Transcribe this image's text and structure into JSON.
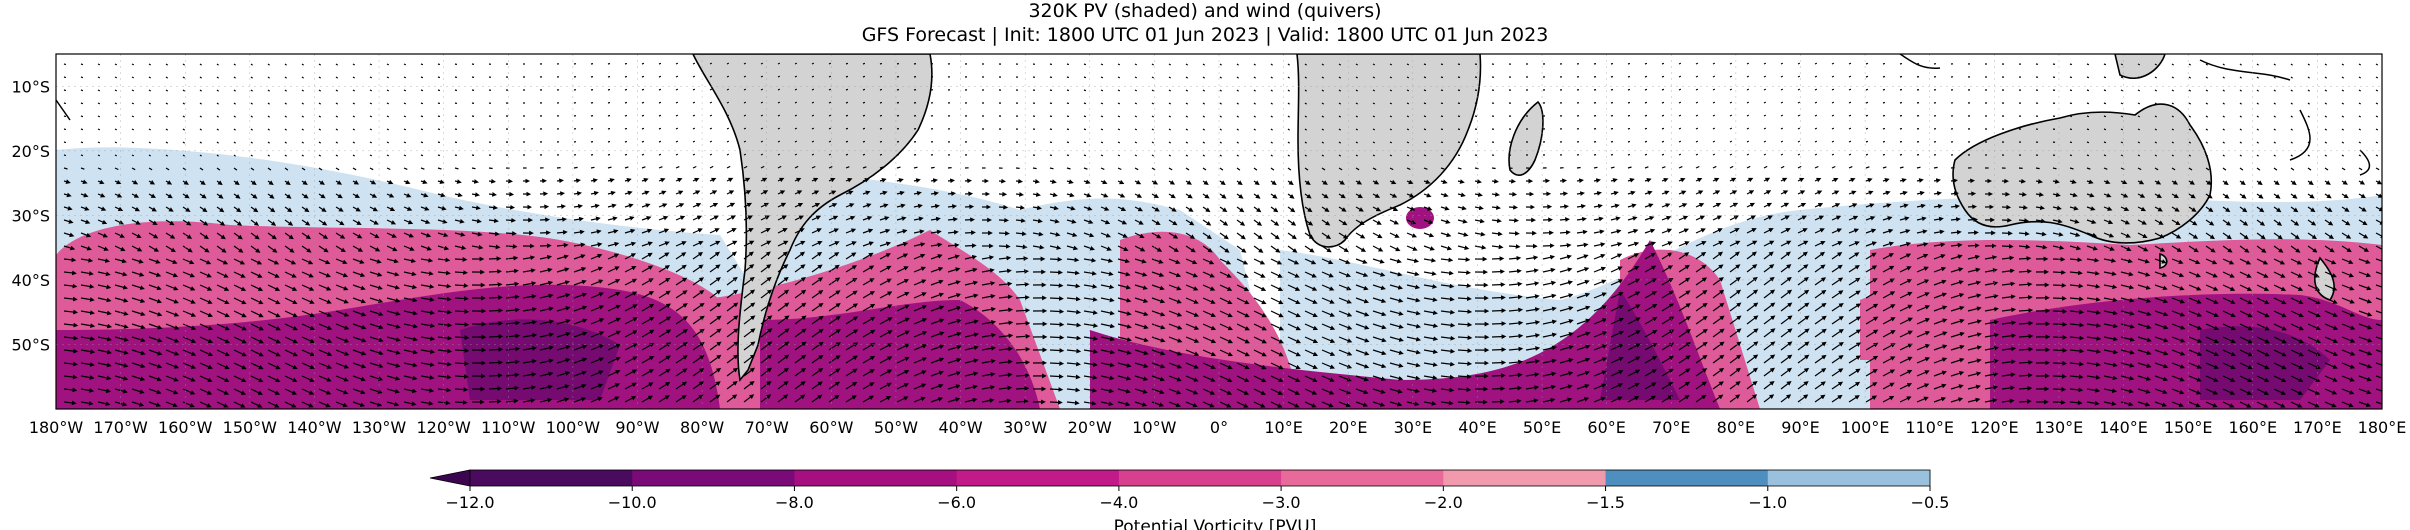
{
  "title": {
    "line1": "320K PV (shaded) and wind (quivers)",
    "line2": "GFS Forecast | Init: 1800 UTC 01 Jun 2023 | Valid: 1800 UTC 01 Jun 2023"
  },
  "map": {
    "lat_labels": [
      "10°S",
      "20°S",
      "30°S",
      "40°S",
      "50°S"
    ],
    "lon_labels": [
      "180°W",
      "170°W",
      "160°W",
      "150°W",
      "140°W",
      "130°W",
      "120°W",
      "110°W",
      "100°W",
      "90°W",
      "80°W",
      "70°W",
      "60°W",
      "50°W",
      "40°W",
      "30°W",
      "20°W",
      "10°W",
      "0°",
      "10°E",
      "20°E",
      "30°E",
      "40°E",
      "50°E",
      "60°E",
      "70°E",
      "80°E",
      "90°E",
      "100°E",
      "110°E",
      "120°E",
      "130°E",
      "140°E",
      "150°E",
      "160°E",
      "170°E",
      "180°E"
    ],
    "extent": {
      "lon": [
        -180,
        180
      ],
      "lat": [
        -5,
        -60
      ]
    },
    "land_color": "#d3d3d3",
    "wind_arrow_color": "#000000"
  },
  "colorbar": {
    "label": "Potential Vorticity [PVU]",
    "tick_labels": [
      "−12.0",
      "−10.0",
      "−8.0",
      "−6.0",
      "−4.0",
      "−3.0",
      "−2.0",
      "−1.5",
      "−1.0",
      "−0.5"
    ],
    "levels": [
      -12.0,
      -10.0,
      -8.0,
      -6.0,
      -4.0,
      -3.0,
      -2.0,
      -1.5,
      -1.0,
      -0.5
    ],
    "colors": [
      "#4a0a5e",
      "#7a0a78",
      "#a60f80",
      "#c21a88",
      "#d8408f",
      "#e86a9a",
      "#f19aad",
      "#4f8fc0",
      "#99c0dd",
      "#d3e5f3"
    ],
    "extend_color": "#3b0550"
  }
}
